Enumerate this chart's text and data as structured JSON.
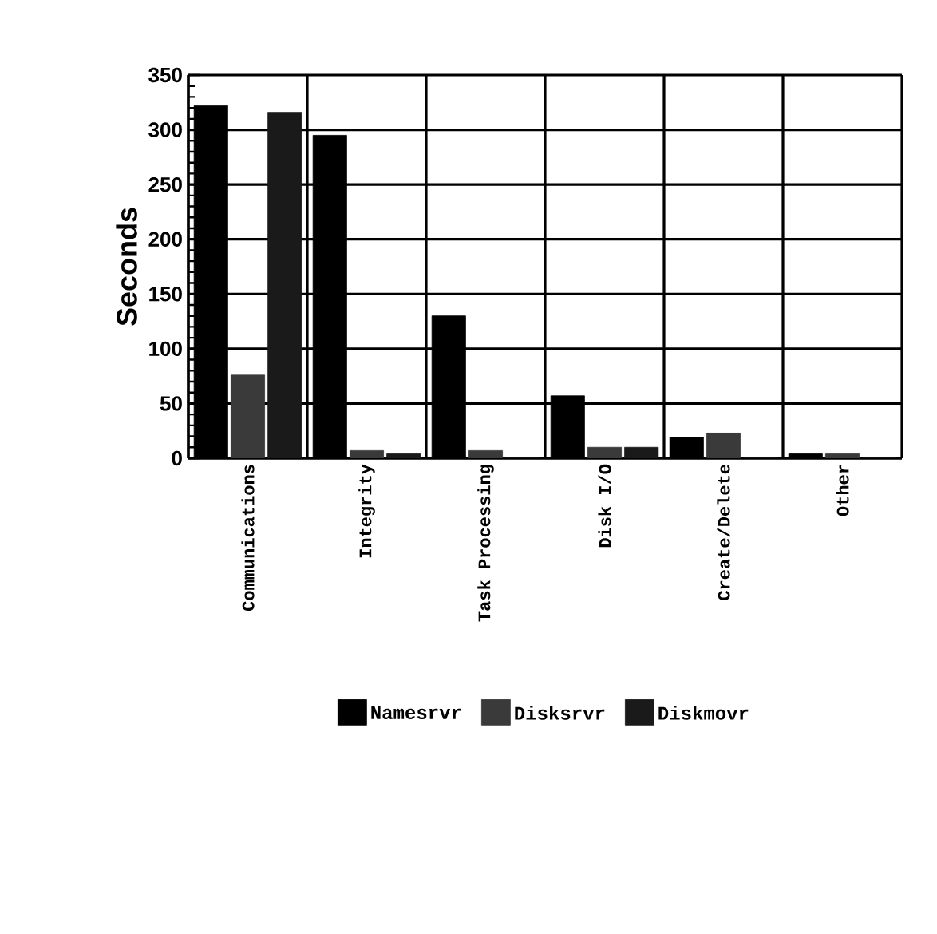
{
  "chart_data": {
    "type": "bar",
    "ylabel": "Seconds",
    "categories": [
      "Communications",
      "Integrity",
      "Task Processing",
      "Disk I/O",
      "Create/Delete",
      "Other"
    ],
    "series": [
      {
        "name": "Namesrvr",
        "color": "#000000",
        "values": [
          322,
          295,
          130,
          57,
          19,
          4
        ]
      },
      {
        "name": "Disksrvr",
        "color": "#3a3a3a",
        "values": [
          76,
          7,
          7,
          10,
          23,
          4
        ]
      },
      {
        "name": "Diskmovr",
        "color": "#1a1a1a",
        "values": [
          316,
          4,
          0,
          10,
          0,
          0
        ]
      }
    ],
    "ylim": [
      0,
      350
    ],
    "yticks": [
      0,
      50,
      100,
      150,
      200,
      250,
      300,
      350
    ],
    "grid": true,
    "legend": "bottom"
  }
}
